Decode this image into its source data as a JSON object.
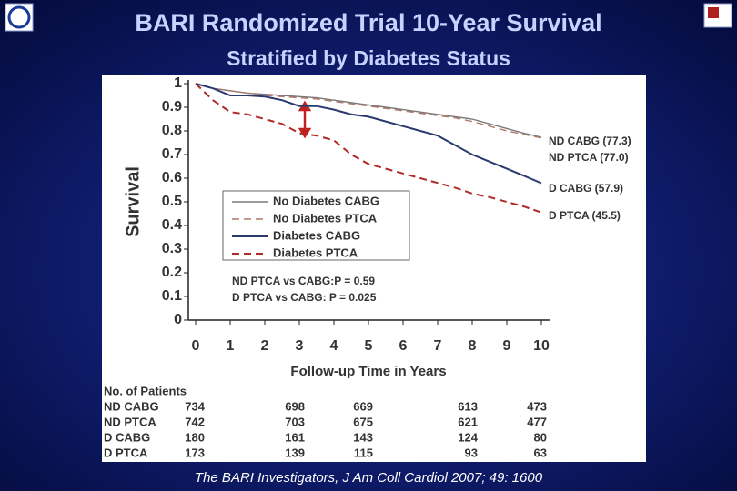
{
  "header": {
    "title": "BARI Randomized Trial 10-Year Survival",
    "subtitle": "Stratified by Diabetes Status"
  },
  "chart_data": {
    "type": "line",
    "y_label": "Survival",
    "x_label": "Follow-up Time in Years",
    "x": [
      0,
      0.5,
      1,
      1.5,
      2,
      2.5,
      3,
      3.5,
      4,
      4.5,
      5,
      5.5,
      6,
      6.5,
      7,
      7.5,
      8,
      8.5,
      9,
      9.5,
      10
    ],
    "xlim": [
      0,
      10
    ],
    "xticks": [
      0,
      1,
      2,
      3,
      4,
      5,
      6,
      7,
      8,
      9,
      10
    ],
    "ylim": [
      0,
      1
    ],
    "yticks": [
      0,
      0.1,
      0.2,
      0.3,
      0.4,
      0.5,
      0.6,
      0.7,
      0.8,
      0.9,
      1
    ],
    "series": [
      {
        "name": "No Diabetes CABG",
        "color": "#7a7a7a",
        "dashed": false,
        "values": [
          1,
          0.98,
          0.97,
          0.96,
          0.955,
          0.95,
          0.945,
          0.94,
          0.93,
          0.92,
          0.91,
          0.9,
          0.89,
          0.88,
          0.87,
          0.86,
          0.85,
          0.83,
          0.81,
          0.79,
          0.773
        ]
      },
      {
        "name": "No Diabetes PTCA",
        "color": "#b07868",
        "dashed": true,
        "values": [
          1,
          0.98,
          0.97,
          0.96,
          0.95,
          0.945,
          0.94,
          0.935,
          0.925,
          0.915,
          0.905,
          0.895,
          0.885,
          0.875,
          0.865,
          0.855,
          0.84,
          0.82,
          0.8,
          0.785,
          0.77
        ]
      },
      {
        "name": "Diabetes CABG",
        "color": "#2b3a6e",
        "dashed": false,
        "values": [
          1,
          0.98,
          0.95,
          0.95,
          0.945,
          0.93,
          0.905,
          0.905,
          0.89,
          0.87,
          0.86,
          0.84,
          0.82,
          0.8,
          0.78,
          0.74,
          0.7,
          0.67,
          0.64,
          0.61,
          0.579
        ]
      },
      {
        "name": "Diabetes PTCA",
        "color": "#b02a2a",
        "dashed": true,
        "values": [
          1,
          0.93,
          0.88,
          0.87,
          0.85,
          0.83,
          0.79,
          0.78,
          0.76,
          0.7,
          0.66,
          0.64,
          0.62,
          0.6,
          0.58,
          0.56,
          0.535,
          0.52,
          0.5,
          0.48,
          0.455
        ]
      }
    ],
    "end_labels": [
      "ND CABG (77.3)",
      "ND PTCA  (77.0)",
      "D CABG (57.9)",
      "D PTCA   (45.5)"
    ],
    "p_values": [
      "ND PTCA vs CABG:P = 0.59",
      "D  PTCA vs CABG:  P = 0.025"
    ]
  },
  "patients": {
    "title": "No. of Patients",
    "rows": [
      {
        "label": "ND CABG",
        "counts": [
          "734",
          "698",
          "669",
          "613",
          "473"
        ]
      },
      {
        "label": "ND PTCA",
        "counts": [
          "742",
          "703",
          "675",
          "621",
          "477"
        ]
      },
      {
        "label": "D   CABG",
        "counts": [
          "180",
          "161",
          "143",
          "124",
          "80"
        ]
      },
      {
        "label": "D   PTCA",
        "counts": [
          "173",
          "139",
          "115",
          "93",
          "63"
        ]
      }
    ]
  },
  "citation": "The BARI Investigators,  J Am Coll Cardiol 2007; 49: 1600"
}
